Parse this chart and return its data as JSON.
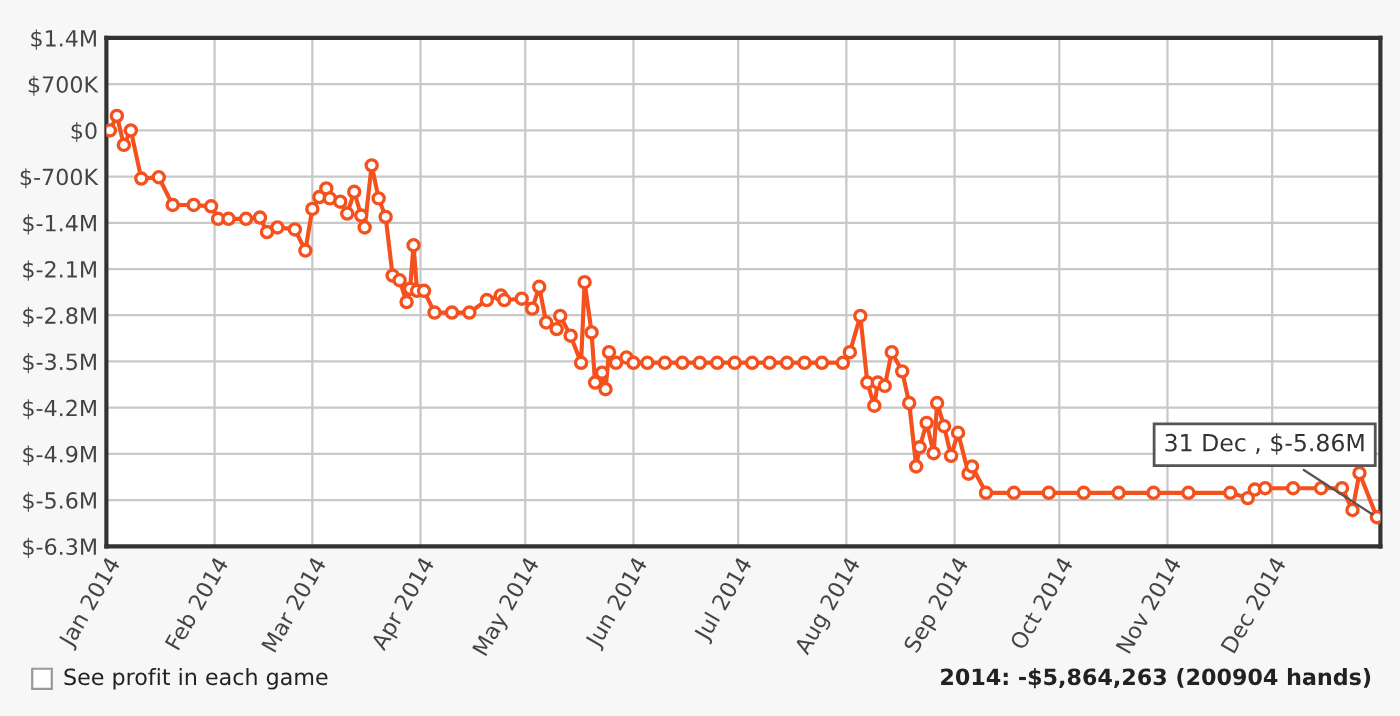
{
  "chart_data": {
    "type": "line",
    "x": [
      "2014-01-02",
      "2014-01-04",
      "2014-01-06",
      "2014-01-08",
      "2014-01-11",
      "2014-01-16",
      "2014-01-20",
      "2014-01-26",
      "2014-01-31",
      "2014-02-02",
      "2014-02-05",
      "2014-02-10",
      "2014-02-14",
      "2014-02-16",
      "2014-02-19",
      "2014-02-24",
      "2014-02-27",
      "2014-03-01",
      "2014-03-03",
      "2014-03-05",
      "2014-03-06",
      "2014-03-09",
      "2014-03-11",
      "2014-03-13",
      "2014-03-15",
      "2014-03-16",
      "2014-03-18",
      "2014-03-20",
      "2014-03-22",
      "2014-03-24",
      "2014-03-26",
      "2014-03-28",
      "2014-03-29",
      "2014-03-30",
      "2014-03-31",
      "2014-04-02",
      "2014-04-05",
      "2014-04-10",
      "2014-04-15",
      "2014-04-20",
      "2014-04-24",
      "2014-04-25",
      "2014-04-30",
      "2014-05-03",
      "2014-05-05",
      "2014-05-07",
      "2014-05-10",
      "2014-05-11",
      "2014-05-14",
      "2014-05-17",
      "2014-05-18",
      "2014-05-20",
      "2014-05-21",
      "2014-05-23",
      "2014-05-24",
      "2014-05-25",
      "2014-05-27",
      "2014-05-30",
      "2014-06-01",
      "2014-06-05",
      "2014-06-10",
      "2014-06-15",
      "2014-06-20",
      "2014-06-25",
      "2014-06-30",
      "2014-07-05",
      "2014-07-10",
      "2014-07-15",
      "2014-07-20",
      "2014-07-25",
      "2014-07-31",
      "2014-08-02",
      "2014-08-05",
      "2014-08-07",
      "2014-08-09",
      "2014-08-10",
      "2014-08-12",
      "2014-08-14",
      "2014-08-17",
      "2014-08-19",
      "2014-08-21",
      "2014-08-22",
      "2014-08-24",
      "2014-08-26",
      "2014-08-27",
      "2014-08-29",
      "2014-08-31",
      "2014-09-02",
      "2014-09-05",
      "2014-09-06",
      "2014-09-10",
      "2014-09-18",
      "2014-09-28",
      "2014-10-08",
      "2014-10-18",
      "2014-10-28",
      "2014-11-07",
      "2014-11-19",
      "2014-11-24",
      "2014-11-26",
      "2014-11-29",
      "2014-12-07",
      "2014-12-15",
      "2014-12-21",
      "2014-12-24",
      "2014-12-26",
      "2014-12-31"
    ],
    "series": [
      {
        "color": "#f4511e",
        "values": [
          0,
          220000,
          -220000,
          0,
          -730000,
          -710000,
          -1130000,
          -1130000,
          -1150000,
          -1340000,
          -1340000,
          -1340000,
          -1320000,
          -1540000,
          -1470000,
          -1500000,
          -1820000,
          -1190000,
          -1010000,
          -880000,
          -1030000,
          -1080000,
          -1260000,
          -930000,
          -1290000,
          -1470000,
          -530000,
          -1030000,
          -1310000,
          -2200000,
          -2270000,
          -2600000,
          -2400000,
          -1740000,
          -2430000,
          -2430000,
          -2760000,
          -2760000,
          -2760000,
          -2570000,
          -2500000,
          -2570000,
          -2550000,
          -2700000,
          -2370000,
          -2910000,
          -3010000,
          -2810000,
          -3110000,
          -3520000,
          -2300000,
          -3060000,
          -3820000,
          -3670000,
          -3920000,
          -3360000,
          -3520000,
          -3440000,
          -3520000,
          -3520000,
          -3520000,
          -3520000,
          -3520000,
          -3520000,
          -3520000,
          -3520000,
          -3520000,
          -3520000,
          -3520000,
          -3520000,
          -3520000,
          -3360000,
          -2810000,
          -3820000,
          -4170000,
          -3820000,
          -3870000,
          -3360000,
          -3650000,
          -4130000,
          -5090000,
          -4800000,
          -4430000,
          -4890000,
          -4130000,
          -4480000,
          -4930000,
          -4580000,
          -5200000,
          -5090000,
          -5490000,
          -5490000,
          -5490000,
          -5490000,
          -5490000,
          -5490000,
          -5490000,
          -5490000,
          -5570000,
          -5440000,
          -5420000,
          -5420000,
          -5420000,
          -5420000,
          -5750000,
          -5190000,
          -5860000
        ]
      }
    ],
    "xlim": [
      "2014-01-01",
      "2015-01-01"
    ],
    "xticks": [
      {
        "value": "2014-01-01",
        "label": "Jan 2014"
      },
      {
        "value": "2014-02-01",
        "label": "Feb 2014"
      },
      {
        "value": "2014-03-01",
        "label": "Mar 2014"
      },
      {
        "value": "2014-04-01",
        "label": "Apr 2014"
      },
      {
        "value": "2014-05-01",
        "label": "May 2014"
      },
      {
        "value": "2014-06-01",
        "label": "Jun 2014"
      },
      {
        "value": "2014-07-01",
        "label": "Jul 2014"
      },
      {
        "value": "2014-08-01",
        "label": "Aug 2014"
      },
      {
        "value": "2014-09-01",
        "label": "Sep 2014"
      },
      {
        "value": "2014-10-01",
        "label": "Oct 2014"
      },
      {
        "value": "2014-11-01",
        "label": "Nov 2014"
      },
      {
        "value": "2014-12-01",
        "label": "Dec 2014"
      }
    ],
    "ylim": [
      -6300000,
      1400000
    ],
    "yticks": [
      {
        "value": 1400000,
        "label": "$1.4M"
      },
      {
        "value": 700000,
        "label": "$700K"
      },
      {
        "value": 0,
        "label": "$0"
      },
      {
        "value": -700000,
        "label": "$-700K"
      },
      {
        "value": -1400000,
        "label": "$-1.4M"
      },
      {
        "value": -2100000,
        "label": "$-2.1M"
      },
      {
        "value": -2800000,
        "label": "$-2.8M"
      },
      {
        "value": -3500000,
        "label": "$-3.5M"
      },
      {
        "value": -4200000,
        "label": "$-4.2M"
      },
      {
        "value": -4900000,
        "label": "$-4.9M"
      },
      {
        "value": -5600000,
        "label": "$-5.6M"
      },
      {
        "value": -6300000,
        "label": "$-6.3M"
      }
    ],
    "grid": true,
    "legend": false,
    "marker": "circle",
    "line_style": "solid",
    "annotations": [
      {
        "text": "31 Dec , $-5.86M",
        "x": "2014-12-31",
        "y": -5860000
      },
      "See profit in each game",
      "2014: -$5,864,263 (200904 hands)"
    ]
  }
}
